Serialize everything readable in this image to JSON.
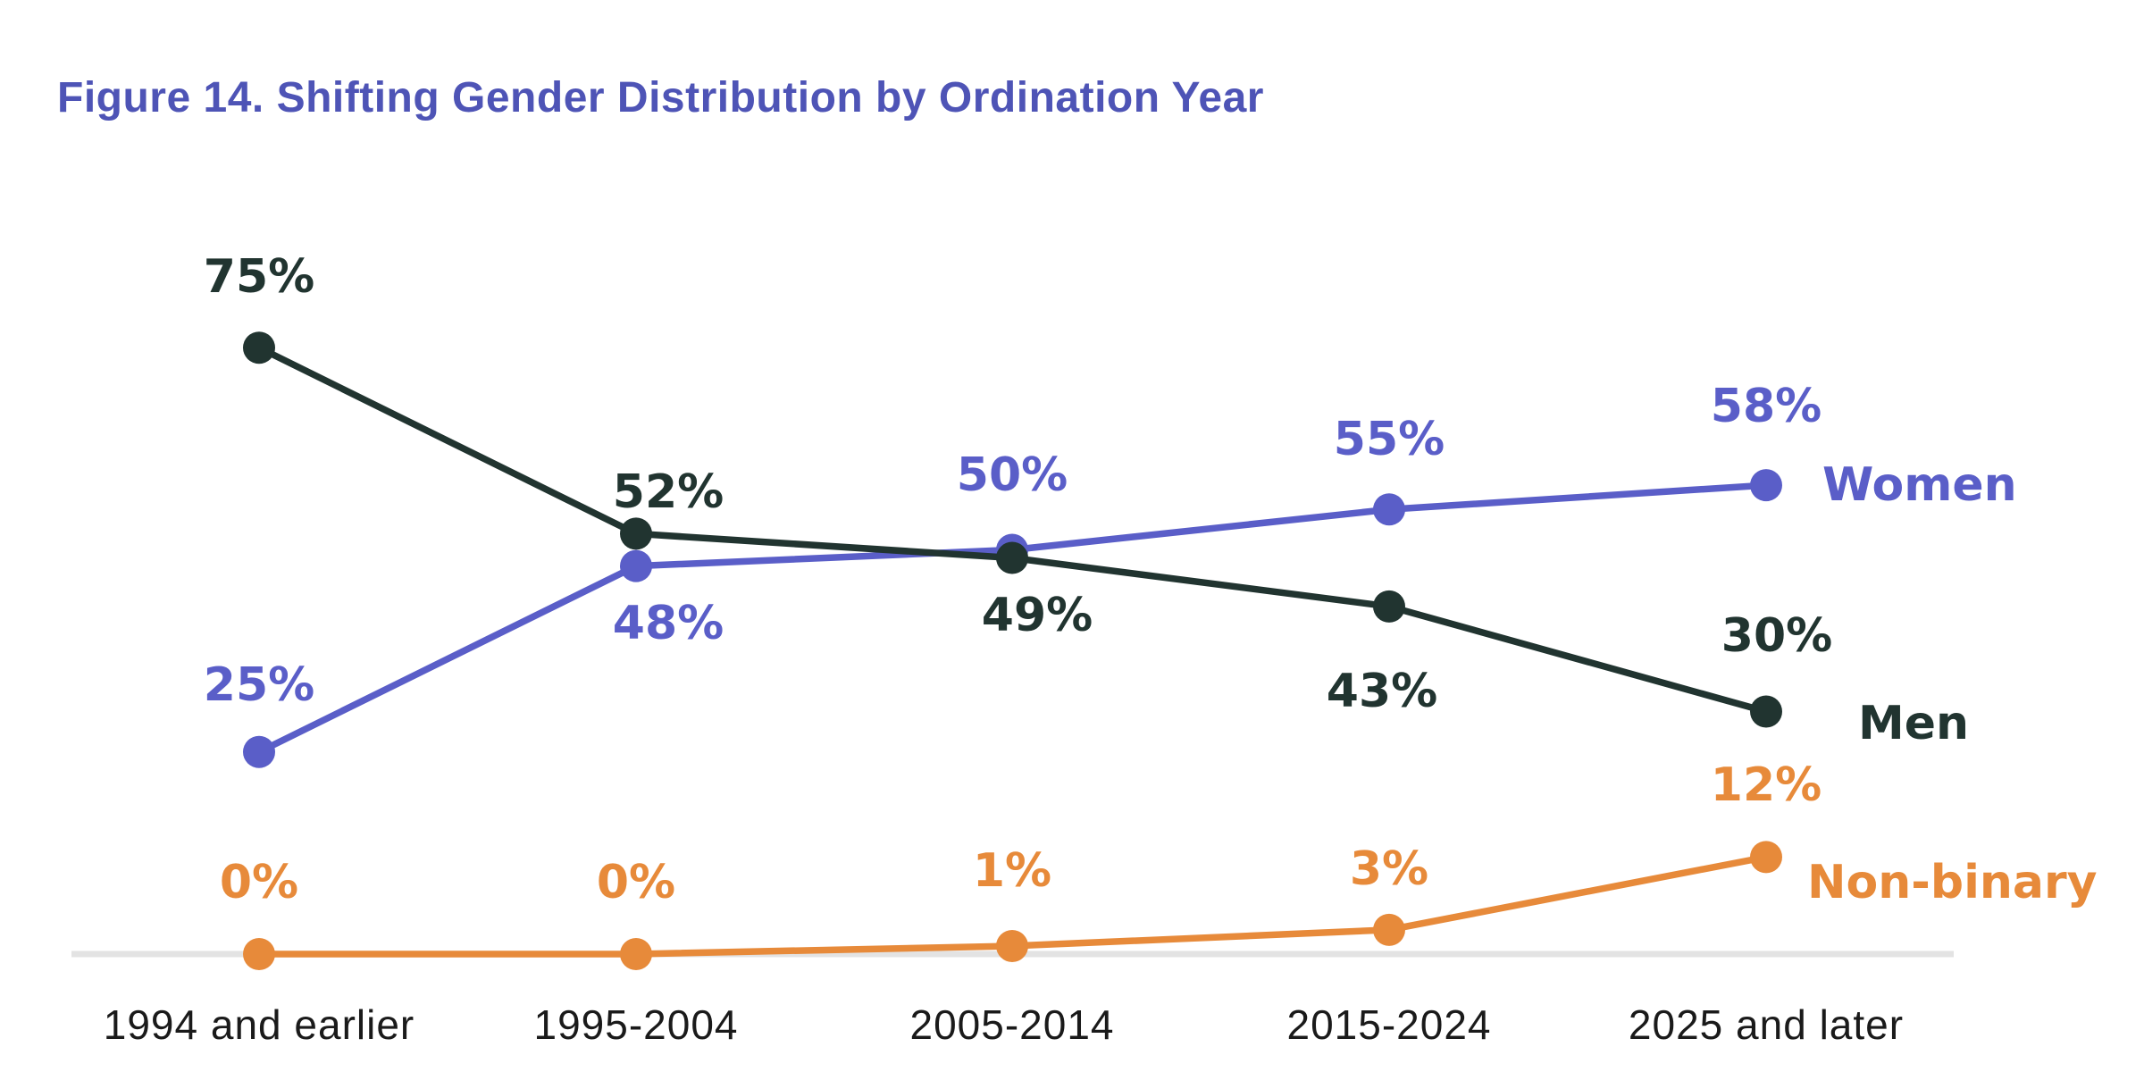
{
  "title": "Figure 14. Shifting Gender Distribution by Ordination Year",
  "colors": {
    "title": "#4e54b6",
    "women": "#5a5ec8",
    "men": "#213430",
    "nonbinary": "#e78a3a",
    "axis_line": "#e3e3e3",
    "tick_text": "#1a1a1a",
    "background": "#ffffff"
  },
  "chart_data": {
    "type": "line",
    "title": "Figure 14. Shifting Gender Distribution by Ordination Year",
    "categories": [
      "1994 and earlier",
      "1995-2004",
      "2005-2014",
      "2015-2024",
      "2025 and later"
    ],
    "series": [
      {
        "name": "Women",
        "color_key": "women",
        "values": [
          25,
          48,
          50,
          55,
          58
        ],
        "labels": [
          "25%",
          "48%",
          "50%",
          "55%",
          "58%"
        ]
      },
      {
        "name": "Men",
        "color_key": "men",
        "values": [
          75,
          52,
          49,
          43,
          30
        ],
        "labels": [
          "75%",
          "52%",
          "49%",
          "43%",
          "30%"
        ]
      },
      {
        "name": "Non-binary",
        "color_key": "nonbinary",
        "values": [
          0,
          0,
          1,
          3,
          12
        ],
        "labels": [
          "0%",
          "0%",
          "1%",
          "3%",
          "12%"
        ]
      }
    ],
    "value_suffix": "%",
    "ylim": [
      0,
      100
    ],
    "xlabel": "",
    "ylabel": "",
    "grid": false,
    "y_axis_visible": false,
    "baseline": "light gray horizontal line at 0%",
    "legend_position": "labels right of last data points"
  }
}
